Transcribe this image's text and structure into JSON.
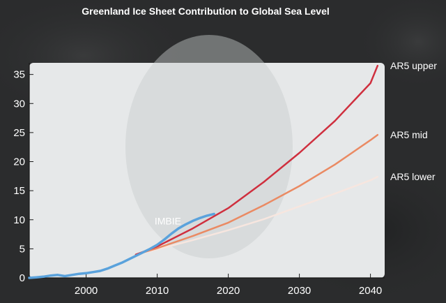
{
  "chart_data": {
    "type": "line",
    "title": "Greenland Ice Sheet Contribution to Global Sea Level",
    "xlabel": "",
    "ylabel": "",
    "xlim": [
      1992,
      2042
    ],
    "ylim": [
      0,
      37
    ],
    "xticks": [
      "2000",
      "2010",
      "2020",
      "2030",
      "2040"
    ],
    "yticks": [
      "0",
      "5",
      "10",
      "15",
      "20",
      "25",
      "30",
      "35"
    ],
    "grid": false,
    "colors": {
      "background": "#2b2c2d",
      "plot_background": "#e6e8e9",
      "axis": "#1a1a1a",
      "text": "#ffffff",
      "imbie": "#5aa2dc",
      "ar5_upper": "#cf2f3e",
      "ar5_mid": "#ea8a63",
      "ar5_lower": "#f7e6df"
    },
    "series": [
      {
        "name": "IMBIE",
        "color": "#5aa2dc",
        "x": [
          1992,
          1993,
          1994,
          1995,
          1996,
          1997,
          1998,
          1999,
          2000,
          2001,
          2002,
          2003,
          2004,
          2005,
          2006,
          2007,
          2008,
          2009,
          2010,
          2011,
          2012,
          2013,
          2014,
          2015,
          2016,
          2017,
          2018
        ],
        "y": [
          0,
          0.1,
          0.2,
          0.4,
          0.5,
          0.3,
          0.5,
          0.7,
          0.8,
          1.0,
          1.2,
          1.6,
          2.1,
          2.6,
          3.2,
          3.8,
          4.4,
          5.0,
          5.7,
          6.6,
          7.6,
          8.5,
          9.2,
          9.8,
          10.3,
          10.7,
          11.0
        ]
      },
      {
        "name": "AR5 upper",
        "color": "#cf2f3e",
        "x": [
          2007,
          2010,
          2015,
          2020,
          2025,
          2030,
          2035,
          2040,
          2041
        ],
        "y": [
          4.0,
          5.4,
          8.5,
          12.0,
          16.5,
          21.5,
          27.0,
          33.5,
          36.5
        ]
      },
      {
        "name": "AR5 mid",
        "color": "#ea8a63",
        "x": [
          2007,
          2010,
          2015,
          2020,
          2025,
          2030,
          2035,
          2040,
          2041
        ],
        "y": [
          4.0,
          5.1,
          7.2,
          9.5,
          12.5,
          15.8,
          19.5,
          23.7,
          24.6
        ]
      },
      {
        "name": "AR5 lower",
        "color": "#f7e6df",
        "x": [
          2007,
          2010,
          2015,
          2020,
          2025,
          2030,
          2035,
          2040,
          2041
        ],
        "y": [
          4.0,
          4.9,
          6.5,
          8.2,
          10.1,
          12.3,
          14.5,
          16.8,
          17.4
        ]
      }
    ]
  }
}
